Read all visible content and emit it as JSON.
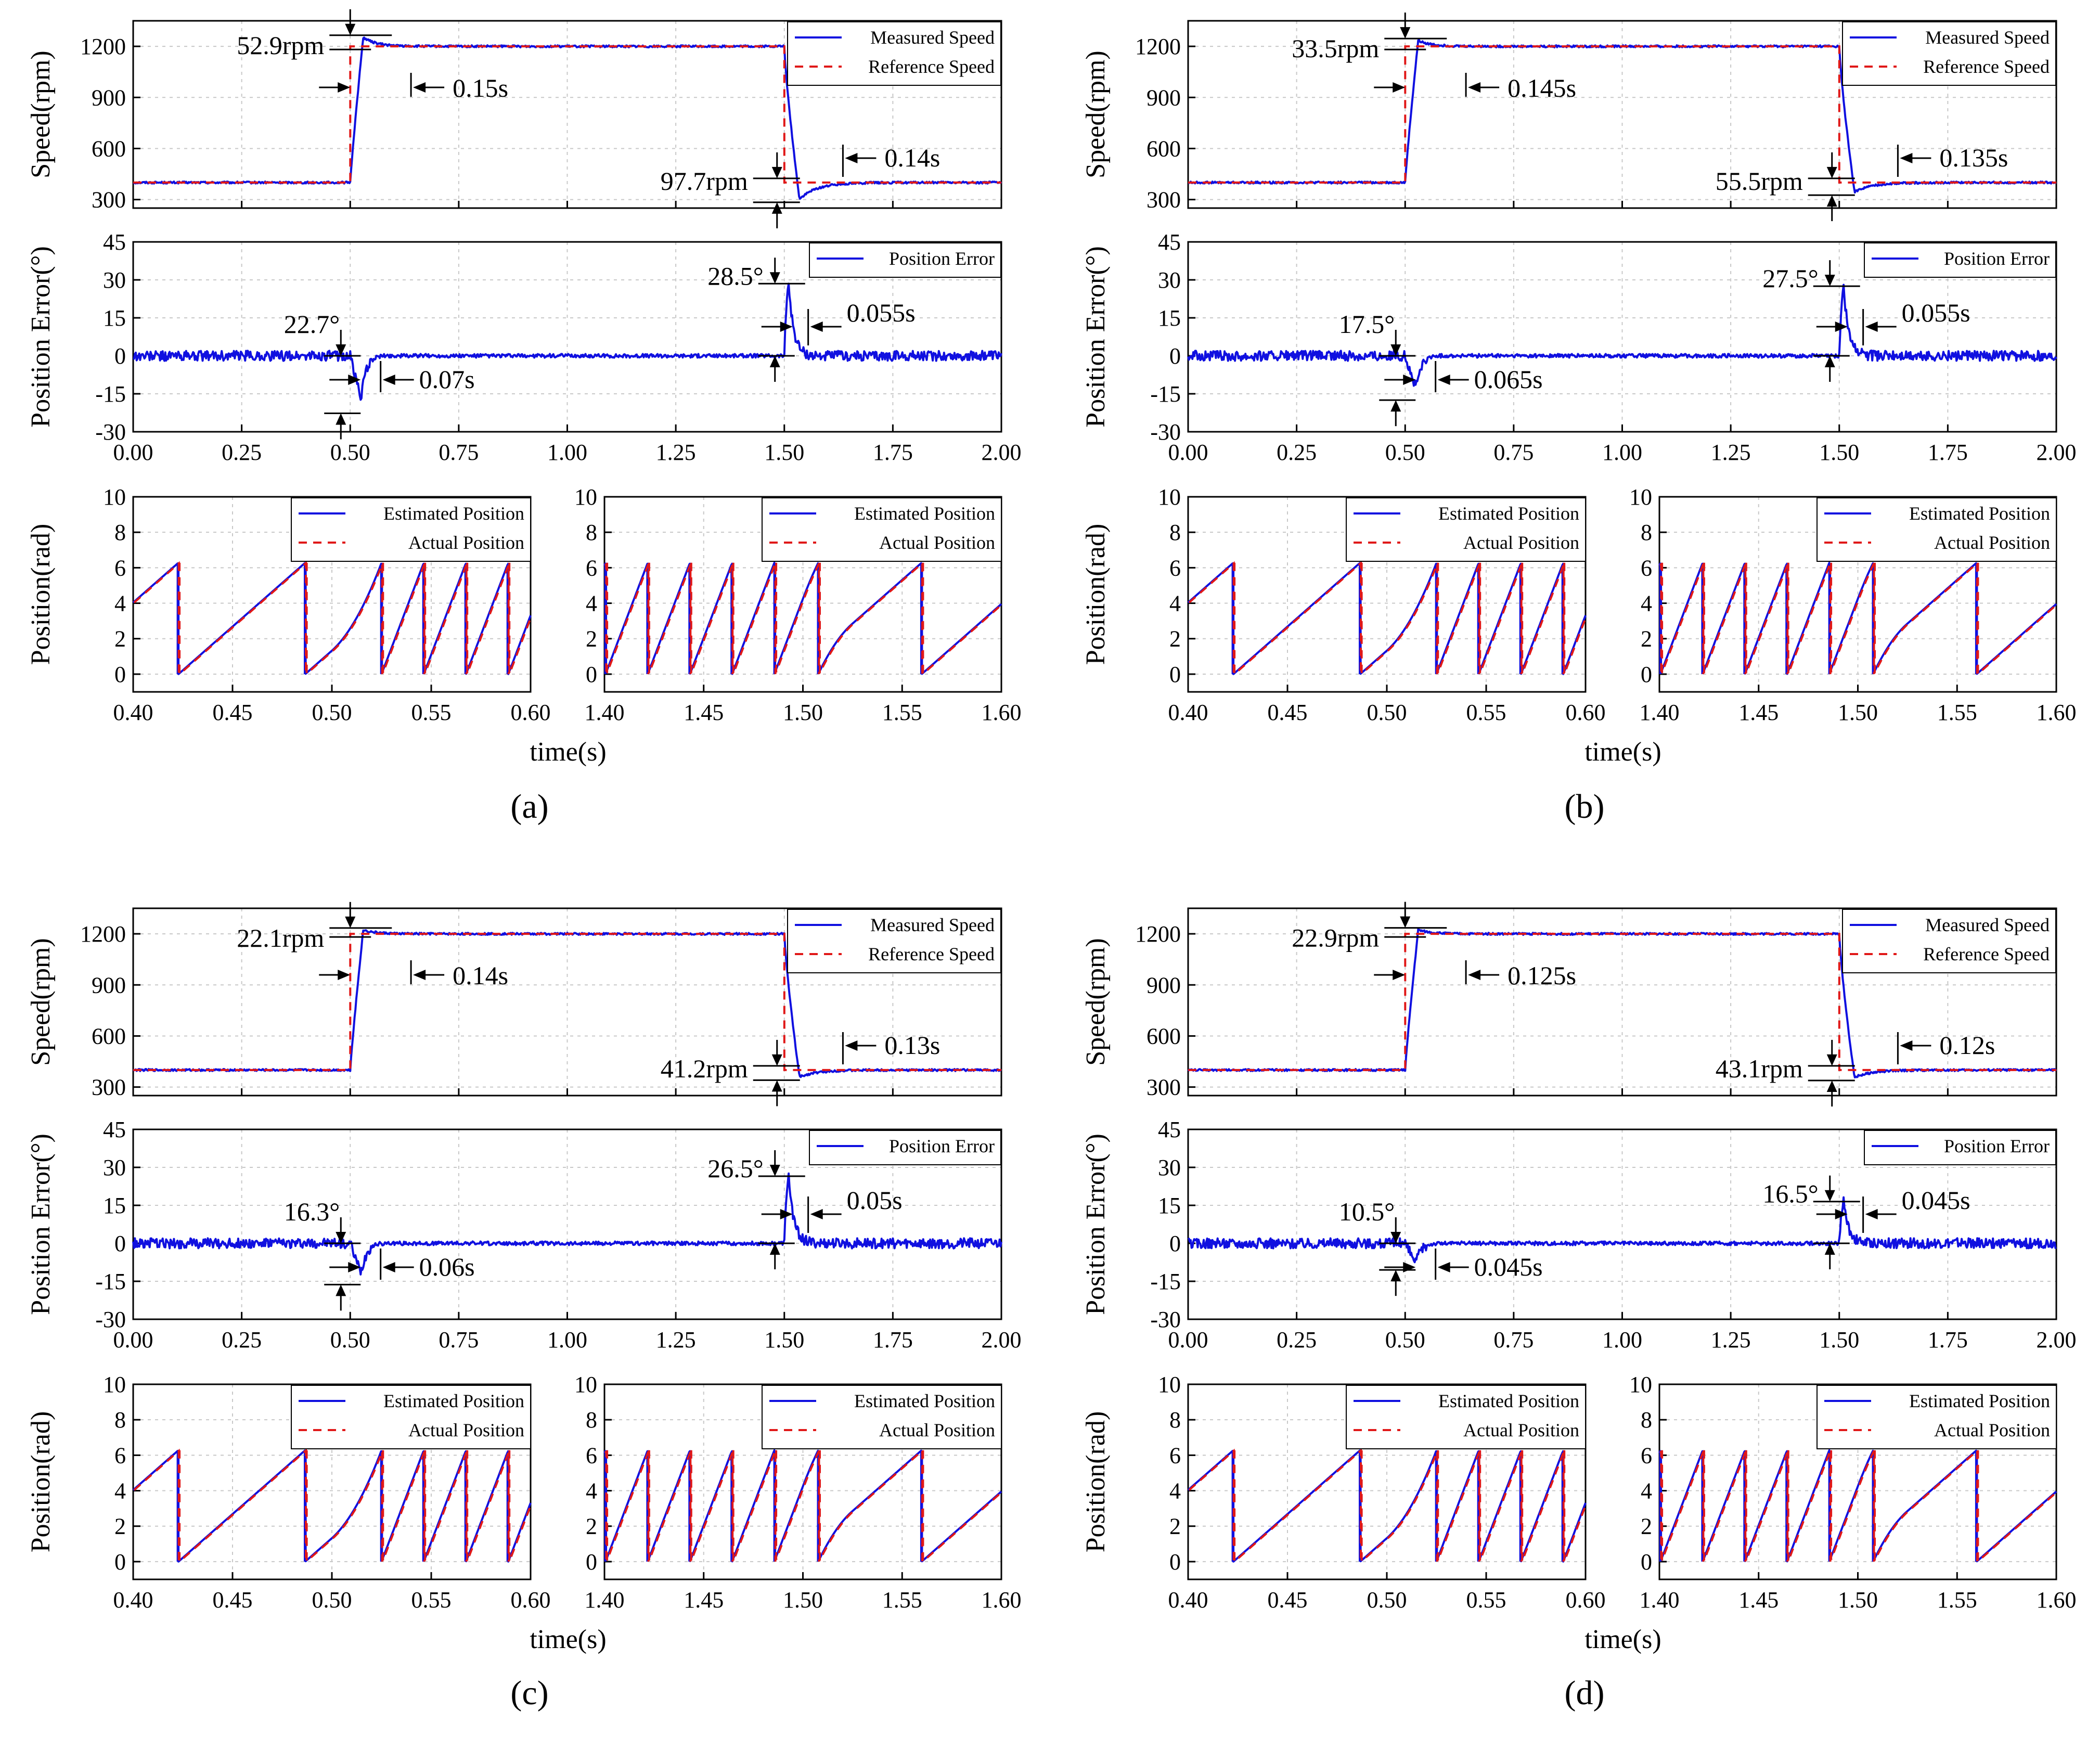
{
  "figure": {
    "xlabel_time": "time(s)",
    "legend": {
      "measured": "Measured Speed",
      "reference": "Reference Speed",
      "error": "Position Error",
      "estimated": "Estimated Position",
      "actual": "Actual Position"
    },
    "colors": {
      "measured": "#1010e0",
      "reference": "#e01818"
    }
  },
  "chart_data": [
    {
      "panel": "(a)",
      "type": "line",
      "speed": {
        "ylabel": "Speed(rpm)",
        "ylim": [
          250,
          1350
        ],
        "yticks": [
          300,
          600,
          900,
          1200
        ],
        "ref_low": 400,
        "ref_high": 1200,
        "step_up_time": 0.5,
        "step_down_time": 1.5,
        "overshoot_rpm": 52.9,
        "undershoot_rpm": 97.7
      },
      "error": {
        "ylabel": "Position Error(°)",
        "ylim": [
          -30,
          45
        ],
        "yticks": [
          -30,
          -15,
          0,
          15,
          30,
          45
        ],
        "xlim": [
          0,
          2
        ],
        "xticks": [
          0,
          0.25,
          0.5,
          0.75,
          1.0,
          1.25,
          1.5,
          1.75,
          2.0
        ],
        "neg_peak_deg": 22.7,
        "pos_peak_deg": 28.5
      },
      "position": {
        "ylabel": "Position(rad)",
        "ylim": [
          -1,
          10
        ],
        "yticks": [
          0,
          2,
          4,
          6,
          8,
          10
        ],
        "left_xlim": [
          0.4,
          0.6
        ],
        "right_xlim": [
          1.4,
          1.6
        ],
        "left_xticks": [
          0.4,
          0.45,
          0.5,
          0.55,
          0.6
        ],
        "right_xticks": [
          1.4,
          1.45,
          1.5,
          1.55,
          1.6
        ],
        "low_speed_rpm": 400,
        "high_speed_rpm": 1200,
        "wrap_max": 6.28
      },
      "annotations": [
        {
          "label": "52.9rpm",
          "target": "overshoot"
        },
        {
          "label": "0.15s",
          "target": "settle_up"
        },
        {
          "label": "97.7rpm",
          "target": "undershoot"
        },
        {
          "label": "0.14s",
          "target": "settle_down"
        },
        {
          "label": "22.7°",
          "target": "err_neg"
        },
        {
          "label": "0.07s",
          "target": "err_neg_time"
        },
        {
          "label": "28.5°",
          "target": "err_pos"
        },
        {
          "label": "0.055s",
          "target": "err_pos_time"
        }
      ]
    },
    {
      "panel": "(b)",
      "type": "line",
      "speed": {
        "ylabel": "Speed(rpm)",
        "ylim": [
          250,
          1350
        ],
        "yticks": [
          300,
          600,
          900,
          1200
        ],
        "ref_low": 400,
        "ref_high": 1200,
        "step_up_time": 0.5,
        "step_down_time": 1.5,
        "overshoot_rpm": 33.5,
        "undershoot_rpm": 55.5
      },
      "error": {
        "ylabel": "Position Error(°)",
        "ylim": [
          -30,
          45
        ],
        "yticks": [
          -30,
          -15,
          0,
          15,
          30,
          45
        ],
        "xlim": [
          0,
          2
        ],
        "xticks": [
          0,
          0.25,
          0.5,
          0.75,
          1.0,
          1.25,
          1.5,
          1.75,
          2.0
        ],
        "neg_peak_deg": 17.5,
        "pos_peak_deg": 27.5
      },
      "position": {
        "ylabel": "Position(rad)",
        "ylim": [
          -1,
          10
        ],
        "yticks": [
          0,
          2,
          4,
          6,
          8,
          10
        ],
        "left_xlim": [
          0.4,
          0.6
        ],
        "right_xlim": [
          1.4,
          1.6
        ],
        "left_xticks": [
          0.4,
          0.45,
          0.5,
          0.55,
          0.6
        ],
        "right_xticks": [
          1.4,
          1.45,
          1.5,
          1.55,
          1.6
        ],
        "low_speed_rpm": 400,
        "high_speed_rpm": 1200,
        "wrap_max": 6.28
      },
      "annotations": [
        {
          "label": "33.5rpm",
          "target": "overshoot"
        },
        {
          "label": "0.145s",
          "target": "settle_up"
        },
        {
          "label": "55.5rpm",
          "target": "undershoot"
        },
        {
          "label": "0.135s",
          "target": "settle_down"
        },
        {
          "label": "17.5°",
          "target": "err_neg"
        },
        {
          "label": "0.065s",
          "target": "err_neg_time"
        },
        {
          "label": "27.5°",
          "target": "err_pos"
        },
        {
          "label": "0.055s",
          "target": "err_pos_time"
        }
      ]
    },
    {
      "panel": "(c)",
      "type": "line",
      "speed": {
        "ylabel": "Speed(rpm)",
        "ylim": [
          250,
          1350
        ],
        "yticks": [
          300,
          600,
          900,
          1200
        ],
        "ref_low": 400,
        "ref_high": 1200,
        "step_up_time": 0.5,
        "step_down_time": 1.5,
        "overshoot_rpm": 22.1,
        "undershoot_rpm": 41.2
      },
      "error": {
        "ylabel": "Position Error(°)",
        "ylim": [
          -30,
          45
        ],
        "yticks": [
          -30,
          -15,
          0,
          15,
          30,
          45
        ],
        "xlim": [
          0,
          2
        ],
        "xticks": [
          0,
          0.25,
          0.5,
          0.75,
          1.0,
          1.25,
          1.5,
          1.75,
          2.0
        ],
        "neg_peak_deg": 16.3,
        "pos_peak_deg": 26.5
      },
      "position": {
        "ylabel": "Position(rad)",
        "ylim": [
          -1,
          10
        ],
        "yticks": [
          0,
          2,
          4,
          6,
          8,
          10
        ],
        "left_xlim": [
          0.4,
          0.6
        ],
        "right_xlim": [
          1.4,
          1.6
        ],
        "left_xticks": [
          0.4,
          0.45,
          0.5,
          0.55,
          0.6
        ],
        "right_xticks": [
          1.4,
          1.45,
          1.5,
          1.55,
          1.6
        ],
        "low_speed_rpm": 400,
        "high_speed_rpm": 1200,
        "wrap_max": 6.28
      },
      "annotations": [
        {
          "label": "22.1rpm",
          "target": "overshoot"
        },
        {
          "label": "0.14s",
          "target": "settle_up"
        },
        {
          "label": "41.2rpm",
          "target": "undershoot"
        },
        {
          "label": "0.13s",
          "target": "settle_down"
        },
        {
          "label": "16.3°",
          "target": "err_neg"
        },
        {
          "label": "0.06s",
          "target": "err_neg_time"
        },
        {
          "label": "26.5°",
          "target": "err_pos"
        },
        {
          "label": "0.05s",
          "target": "err_pos_time"
        }
      ]
    },
    {
      "panel": "(d)",
      "type": "line",
      "speed": {
        "ylabel": "Speed(rpm)",
        "ylim": [
          250,
          1350
        ],
        "yticks": [
          300,
          600,
          900,
          1200
        ],
        "ref_low": 400,
        "ref_high": 1200,
        "step_up_time": 0.5,
        "step_down_time": 1.5,
        "overshoot_rpm": 22.9,
        "undershoot_rpm": 43.1
      },
      "error": {
        "ylabel": "Position Error(°)",
        "ylim": [
          -30,
          45
        ],
        "yticks": [
          -30,
          -15,
          0,
          15,
          30,
          45
        ],
        "xlim": [
          0,
          2
        ],
        "xticks": [
          0,
          0.25,
          0.5,
          0.75,
          1.0,
          1.25,
          1.5,
          1.75,
          2.0
        ],
        "neg_peak_deg": 10.5,
        "pos_peak_deg": 16.5
      },
      "position": {
        "ylabel": "Position(rad)",
        "ylim": [
          -1,
          10
        ],
        "yticks": [
          0,
          2,
          4,
          6,
          8,
          10
        ],
        "left_xlim": [
          0.4,
          0.6
        ],
        "right_xlim": [
          1.4,
          1.6
        ],
        "left_xticks": [
          0.4,
          0.45,
          0.5,
          0.55,
          0.6
        ],
        "right_xticks": [
          1.4,
          1.45,
          1.5,
          1.55,
          1.6
        ],
        "low_speed_rpm": 400,
        "high_speed_rpm": 1200,
        "wrap_max": 6.28
      },
      "annotations": [
        {
          "label": "22.9rpm",
          "target": "overshoot"
        },
        {
          "label": "0.125s",
          "target": "settle_up"
        },
        {
          "label": "43.1rpm",
          "target": "undershoot"
        },
        {
          "label": "0.12s",
          "target": "settle_down"
        },
        {
          "label": "10.5°",
          "target": "err_neg"
        },
        {
          "label": "0.045s",
          "target": "err_neg_time"
        },
        {
          "label": "16.5°",
          "target": "err_pos"
        },
        {
          "label": "0.045s",
          "target": "err_pos_time"
        }
      ]
    }
  ]
}
